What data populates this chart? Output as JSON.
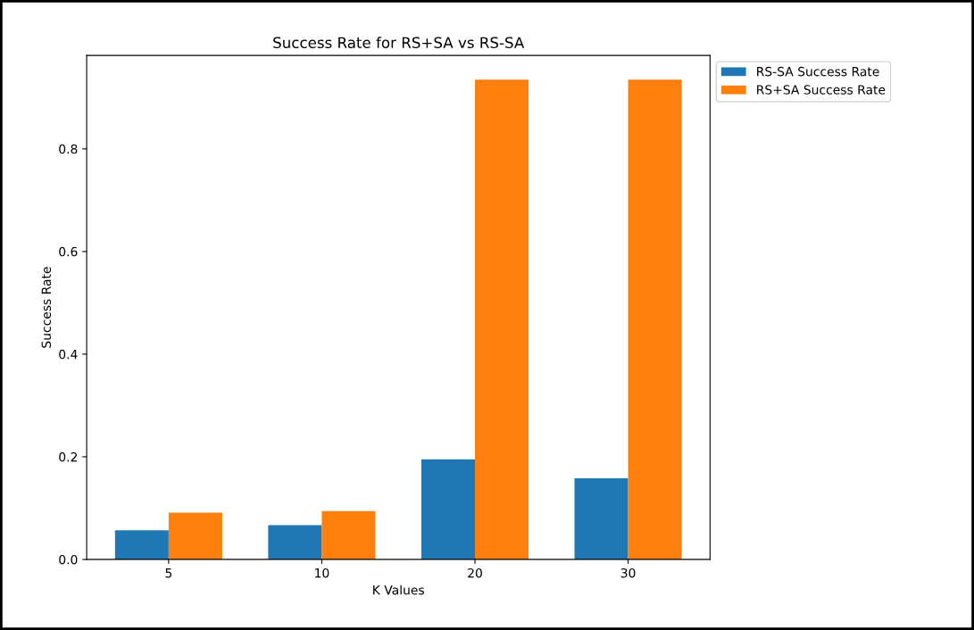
{
  "chart_data": {
    "type": "bar",
    "title": "Success Rate for RS+SA vs RS-SA",
    "xlabel": "K Values",
    "ylabel": "Success Rate",
    "categories": [
      "5",
      "10",
      "20",
      "30"
    ],
    "series": [
      {
        "name": "RS-SA Success Rate",
        "color": "#1f77b4",
        "values": [
          0.057,
          0.067,
          0.195,
          0.158
        ]
      },
      {
        "name": "RS+SA Success Rate",
        "color": "#ff7f0e",
        "values": [
          0.091,
          0.094,
          0.935,
          0.935
        ]
      }
    ],
    "ylim": [
      0,
      0.982
    ],
    "yticks": [
      {
        "value": 0,
        "label": "0.0"
      },
      {
        "value": 0.2,
        "label": "0.2"
      },
      {
        "value": 0.4,
        "label": "0.4"
      },
      {
        "value": 0.6,
        "label": "0.6"
      },
      {
        "value": 0.8,
        "label": "0.8"
      }
    ],
    "legend": "top right"
  }
}
